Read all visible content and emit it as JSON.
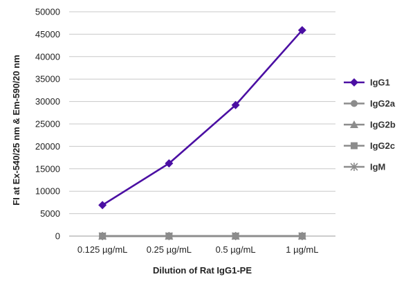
{
  "chart_data": {
    "type": "line",
    "categories": [
      "0.125 µg/mL",
      "0.25 µg/mL",
      "0.5 µg/mL",
      "1 µg/mL"
    ],
    "xlabel": "Dilution of Rat IgG1-PE",
    "ylabel": "FI at Ex-540/25 nm & Em-590/20 nm",
    "ylim": [
      0,
      50000
    ],
    "yticks": [
      0,
      5000,
      10000,
      15000,
      20000,
      25000,
      30000,
      35000,
      40000,
      45000,
      50000
    ],
    "grid": true,
    "legend": "right",
    "series": [
      {
        "name": "IgG1",
        "values": [
          6900,
          16200,
          29200,
          45900
        ],
        "color": "#4b0fa3",
        "marker": "diamond"
      },
      {
        "name": "IgG2a",
        "values": [
          0,
          0,
          0,
          0
        ],
        "color": "#8c8c8c",
        "marker": "circle"
      },
      {
        "name": "IgG2b",
        "values": [
          0,
          0,
          0,
          0
        ],
        "color": "#8c8c8c",
        "marker": "triangle"
      },
      {
        "name": "IgG2c",
        "values": [
          0,
          0,
          0,
          0
        ],
        "color": "#8c8c8c",
        "marker": "square"
      },
      {
        "name": "IgM",
        "values": [
          0,
          0,
          0,
          0
        ],
        "color": "#8c8c8c",
        "marker": "star"
      }
    ]
  }
}
